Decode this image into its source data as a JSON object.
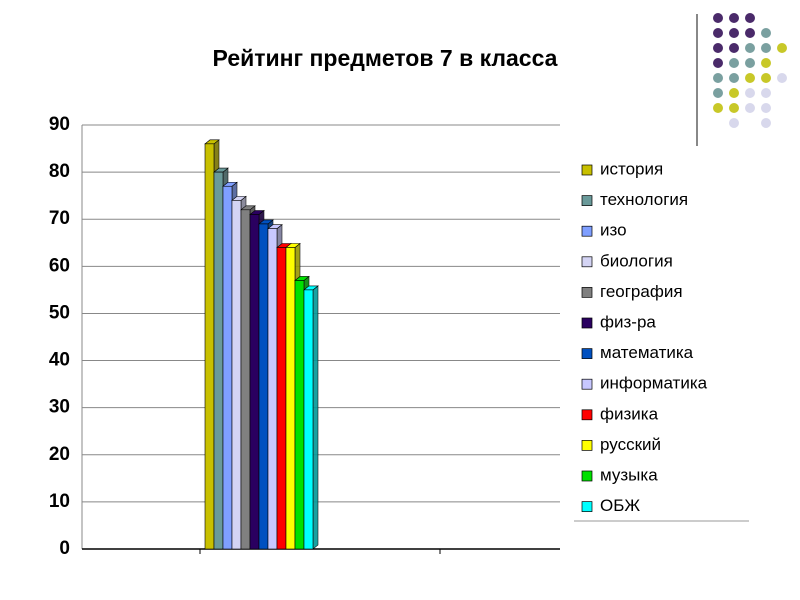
{
  "chart_data": {
    "type": "bar",
    "title": "Рейтинг предметов 7 в класса",
    "categories": [
      null
    ],
    "series": [
      {
        "name": "история",
        "color": "#c8c000",
        "values": [
          86
        ]
      },
      {
        "name": "технология",
        "color": "#6a9a9a",
        "values": [
          80
        ]
      },
      {
        "name": "изо",
        "color": "#7f9fff",
        "values": [
          77
        ]
      },
      {
        "name": "биология",
        "color": "#d4d4f4",
        "values": [
          74
        ]
      },
      {
        "name": "география",
        "color": "#808080",
        "values": [
          72
        ]
      },
      {
        "name": "физ-ра",
        "color": "#2a0060",
        "values": [
          71
        ]
      },
      {
        "name": "математика",
        "color": "#0050c0",
        "values": [
          69
        ]
      },
      {
        "name": "информатика",
        "color": "#c8c8ff",
        "values": [
          68
        ]
      },
      {
        "name": "физика",
        "color": "#ff0000",
        "values": [
          64
        ]
      },
      {
        "name": "русский",
        "color": "#ffff00",
        "values": [
          64
        ]
      },
      {
        "name": "музыка",
        "color": "#00e000",
        "values": [
          57
        ]
      },
      {
        "name": "ОБЖ",
        "color": "#00ffff",
        "values": [
          55
        ]
      }
    ],
    "ylim": [
      0,
      90
    ],
    "yticks": [
      0,
      10,
      20,
      30,
      40,
      50,
      60,
      70,
      80,
      90
    ],
    "grid": true,
    "legend": "right"
  }
}
